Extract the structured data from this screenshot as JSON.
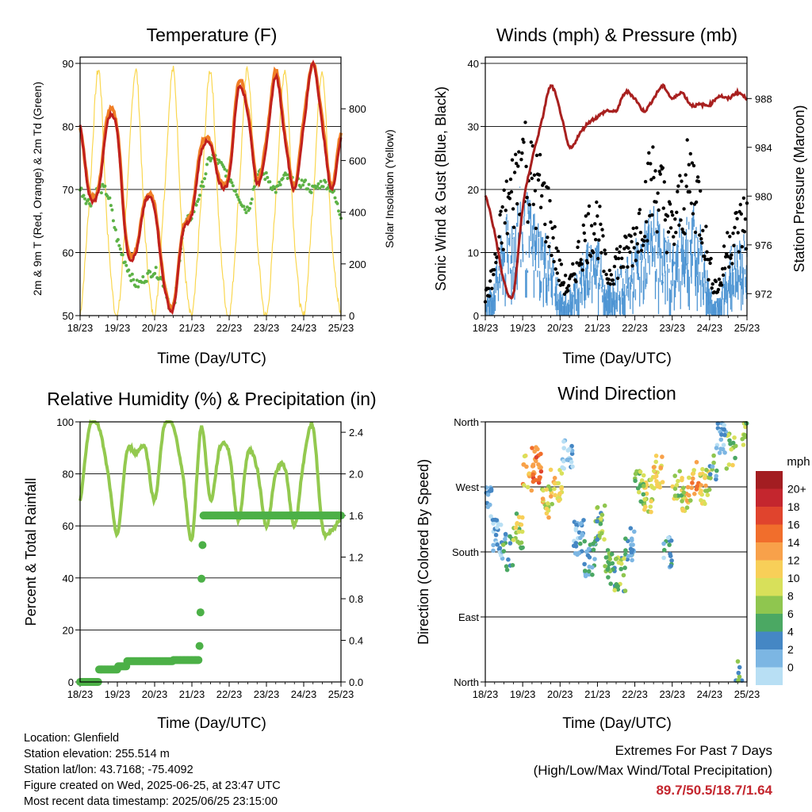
{
  "colors": {
    "temp2m": "#c0201e",
    "temp9m": "#f07e26",
    "dewpoint": "#5db246",
    "solar": "#fad750",
    "gust": "#000000",
    "wind": "#4e95d3",
    "pressure": "#a8201f",
    "rh": "#93c94f",
    "precip": "#4cb047",
    "extremes": "#c4262e"
  },
  "time_ticks": [
    "18/23",
    "19/23",
    "20/23",
    "21/23",
    "22/23",
    "23/23",
    "24/23",
    "25/23"
  ],
  "chart_data": [
    {
      "type": "line",
      "title": "Temperature (F)",
      "xlabel": "Time (Day/UTC)",
      "ylabel": "2m & 9m T (Red, Orange) & 2m Td (Green)",
      "y2label": "Solar Insolation (Yellow)",
      "ylim": [
        50,
        91
      ],
      "y2lim": [
        0,
        1000
      ],
      "yticks": [
        50,
        60,
        70,
        80,
        90
      ],
      "y2ticks": [
        0,
        200,
        400,
        600,
        800
      ],
      "x": [
        0,
        0.25,
        0.5,
        0.75,
        1.0,
        1.25,
        1.5,
        1.75,
        2.0,
        2.25,
        2.5,
        2.75,
        3.0,
        3.25,
        3.5,
        3.75,
        4.0,
        4.25,
        4.5,
        4.75,
        5.0,
        5.25,
        5.5,
        5.75,
        6.0,
        6.25,
        6.5,
        6.75,
        7.0
      ],
      "series": [
        {
          "values": [
            80,
            69,
            70,
            81,
            79,
            61,
            60,
            68,
            67,
            55,
            51,
            63,
            66,
            76,
            77,
            71,
            72,
            86,
            82,
            71,
            77,
            88,
            78,
            70,
            80,
            90,
            80,
            70,
            78
          ]
        },
        {
          "values": [
            80,
            69.5,
            70.5,
            82,
            79.5,
            61.5,
            60.5,
            68.5,
            67.5,
            55.5,
            51.5,
            63.5,
            66.5,
            77,
            77.5,
            71.5,
            72.5,
            87,
            82.5,
            71.5,
            78,
            89,
            78.5,
            70.5,
            81,
            90,
            81,
            70.5,
            79
          ]
        },
        {
          "values": [
            70,
            68,
            70,
            69,
            62,
            58,
            55,
            56,
            57,
            55,
            51,
            63,
            66,
            70,
            75,
            74,
            72,
            69,
            67,
            72,
            72,
            70,
            72,
            71,
            71,
            70,
            71,
            70,
            66
          ]
        },
        {
          "values": [
            0,
            450,
            950,
            300,
            0,
            450,
            950,
            300,
            0,
            450,
            950,
            300,
            0,
            450,
            950,
            300,
            0,
            450,
            950,
            300,
            0,
            450,
            950,
            300,
            0,
            450,
            950,
            300,
            0
          ]
        }
      ]
    },
    {
      "type": "line",
      "title": "Winds (mph) & Pressure (mb)",
      "xlabel": "Time (Day/UTC)",
      "ylabel": "Sonic Wind & Gust (Blue, Black)",
      "y2label": "Station Pressure (Maroon)",
      "ylim": [
        0,
        41
      ],
      "y2lim": [
        970.2,
        991.4
      ],
      "yticks": [
        0,
        10,
        20,
        30,
        40
      ],
      "y2ticks": [
        972,
        976,
        980,
        984,
        988
      ],
      "x": [
        0,
        0.25,
        0.5,
        0.75,
        1.0,
        1.25,
        1.5,
        1.75,
        2.0,
        2.25,
        2.5,
        2.75,
        3.0,
        3.25,
        3.5,
        3.75,
        4.0,
        4.25,
        4.5,
        4.75,
        5.0,
        5.25,
        5.5,
        5.75,
        6.0,
        6.25,
        6.5,
        6.75,
        7.0
      ],
      "series": [
        {
          "values": [
            3,
            8,
            16,
            21,
            26,
            22,
            20,
            15,
            7,
            5,
            10,
            14,
            15,
            7,
            9,
            10,
            13,
            18,
            22,
            19,
            14,
            19,
            22,
            18,
            8,
            5,
            12,
            14,
            16
          ]
        },
        {
          "values": [
            2,
            5,
            10,
            12,
            14,
            12,
            10,
            8,
            3,
            3,
            6,
            8,
            9,
            4,
            5,
            6,
            8,
            10,
            12,
            10,
            8,
            11,
            12,
            10,
            4,
            2,
            7,
            8,
            9
          ]
        },
        {
          "values": [
            980,
            977,
            973,
            972,
            979,
            983,
            986,
            989,
            987,
            984,
            985,
            986,
            986.5,
            987,
            987,
            988.5,
            988,
            987,
            988,
            989,
            988,
            988.5,
            987.5,
            987.5,
            987.5,
            988.2,
            988,
            988.5,
            988
          ]
        }
      ]
    },
    {
      "type": "line",
      "title": "Relative Humidity (%) & Precipitation (in)",
      "xlabel": "Time (Day/UTC)",
      "ylabel": "Percent & Total Rainfall",
      "ylim": [
        0,
        100
      ],
      "y2lim": [
        0,
        2.5
      ],
      "yticks": [
        0,
        20,
        40,
        60,
        80,
        100
      ],
      "y2ticks": [
        "0.0",
        "0.4",
        "0.8",
        "1.2",
        "1.6",
        "2.0",
        "2.4"
      ],
      "x": [
        0,
        0.25,
        0.5,
        0.75,
        1.0,
        1.25,
        1.5,
        1.75,
        2.0,
        2.25,
        2.5,
        2.75,
        3.0,
        3.25,
        3.5,
        3.75,
        4.0,
        4.25,
        4.5,
        4.75,
        5.0,
        5.25,
        5.5,
        5.75,
        6.0,
        6.25,
        6.5,
        6.75,
        7.0
      ],
      "series": [
        {
          "values": [
            70,
            98,
            98,
            80,
            57,
            88,
            88,
            90,
            70,
            98,
            98,
            80,
            55,
            98,
            70,
            90,
            88,
            62,
            88,
            82,
            60,
            80,
            82,
            60,
            85,
            98,
            60,
            58,
            63
          ]
        },
        {
          "values": [
            0,
            0,
            0.12,
            0.12,
            0.15,
            0.2,
            0.2,
            0.2,
            0.2,
            0.2,
            0.21,
            0.21,
            0.21,
            1.6,
            1.6,
            1.6,
            1.6,
            1.6,
            1.6,
            1.6,
            1.6,
            1.6,
            1.6,
            1.6,
            1.6,
            1.6,
            1.6,
            1.6,
            1.6
          ]
        }
      ]
    },
    {
      "type": "scatter",
      "title": "Wind Direction",
      "xlabel": "Time (Day/UTC)",
      "ylabel": "Direction (Colored By Speed)",
      "ylim": [
        0,
        360
      ],
      "ytick_labels": [
        "North",
        "East",
        "South",
        "West",
        "North"
      ],
      "x": [
        0.1,
        0.3,
        0.6,
        0.9,
        1.1,
        1.4,
        1.6,
        1.9,
        2.2,
        2.5,
        2.8,
        3.1,
        3.3,
        3.6,
        3.9,
        4.1,
        4.4,
        4.6,
        4.9,
        5.1,
        5.4,
        5.6,
        5.9,
        6.1,
        6.3,
        6.6,
        6.8,
        6.95
      ],
      "direction": [
        250,
        200,
        180,
        210,
        290,
        300,
        250,
        270,
        310,
        200,
        170,
        220,
        160,
        150,
        190,
        270,
        260,
        290,
        180,
        270,
        260,
        280,
        270,
        300,
        340,
        320,
        10,
        350
      ],
      "speed": [
        4,
        3,
        6,
        10,
        14,
        16,
        12,
        12,
        2,
        4,
        5,
        8,
        9,
        8,
        5,
        9,
        11,
        13,
        4,
        10,
        12,
        14,
        12,
        6,
        3,
        10,
        7,
        9
      ],
      "colorbar_label": "mph",
      "colorbar_ticks": [
        "20+",
        "18",
        "16",
        "14",
        "12",
        "10",
        "8",
        "6",
        "4",
        "2",
        "0"
      ],
      "colorbar_colors": [
        "#a31d21",
        "#c4262e",
        "#e0442d",
        "#f16e2c",
        "#f8a14a",
        "#f8cf58",
        "#d8e05a",
        "#8fc64f",
        "#4ba863",
        "#4587c4",
        "#7cb6e3",
        "#b8dff4"
      ]
    }
  ],
  "footer": {
    "location": "Location: Glenfield",
    "elevation": "Station elevation: 255.514 m",
    "latlon": "Station lat/lon: 43.7168; -75.4092",
    "created": "Figure created on Wed, 2025-06-25, at 23:47 UTC",
    "recent": "Most recent data timestamp: 2025/06/25 23:15:00"
  },
  "extremes": {
    "title": "Extremes For Past 7 Days",
    "subtitle": "(High/Low/Max Wind/Total Precipitation)",
    "values": "89.7/50.5/18.7/1.64"
  }
}
